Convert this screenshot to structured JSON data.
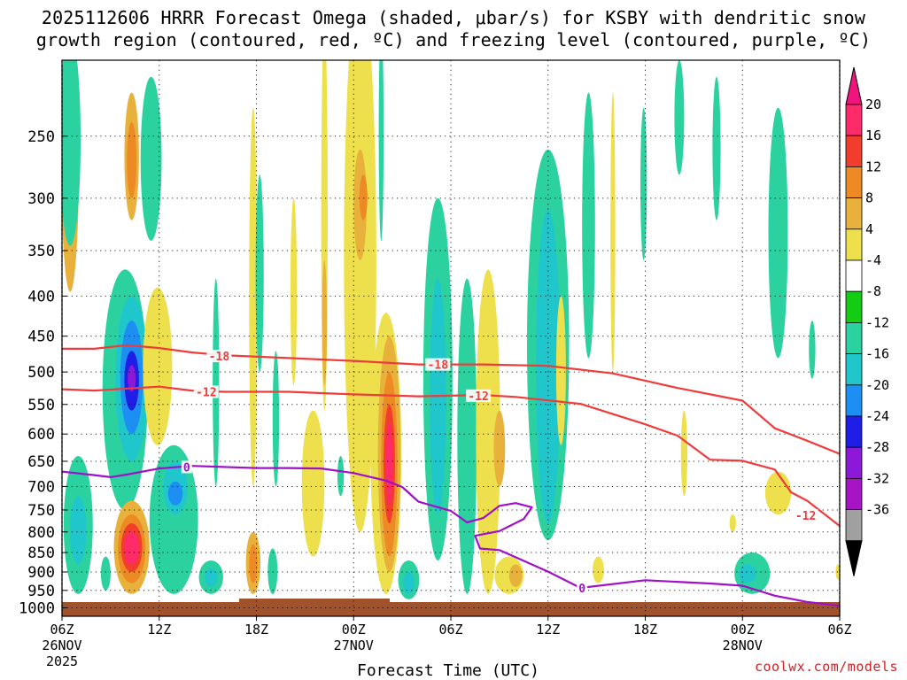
{
  "header": {
    "title_line1": "2025112606 HRRR Forecast Omega (shaded, μbar/s) for KSBY with dendritic snow",
    "title_line2": "growth region (contoured, red, ºC) and freezing level (contoured, purple, ºC)"
  },
  "footer": {
    "credit": "coolwx.com/models"
  },
  "chart_data": {
    "type": "heatmap",
    "title": "2025112606 HRRR Forecast Omega (shaded, μbar/s) for KSBY",
    "xlabel": "Forecast Time (UTC)",
    "ylabel": "",
    "x_unit": "forecast hour",
    "x_range": [
      0,
      48
    ],
    "y_range_hPa": [
      1025,
      200
    ],
    "y_scale": "log-pressure (inverted)",
    "x_ticks": [
      {
        "hour": 0,
        "label": "06Z",
        "sub": [
          "26NOV",
          "2025"
        ]
      },
      {
        "hour": 6,
        "label": "12Z",
        "sub": []
      },
      {
        "hour": 12,
        "label": "18Z",
        "sub": []
      },
      {
        "hour": 18,
        "label": "00Z",
        "sub": [
          "27NOV"
        ]
      },
      {
        "hour": 24,
        "label": "06Z",
        "sub": []
      },
      {
        "hour": 30,
        "label": "12Z",
        "sub": []
      },
      {
        "hour": 36,
        "label": "18Z",
        "sub": []
      },
      {
        "hour": 42,
        "label": "00Z",
        "sub": [
          "28NOV"
        ]
      },
      {
        "hour": 48,
        "label": "06Z",
        "sub": []
      }
    ],
    "y_ticks": [
      250,
      300,
      350,
      400,
      450,
      500,
      550,
      600,
      650,
      700,
      750,
      800,
      850,
      900,
      950,
      1000
    ],
    "colorbar": {
      "labels": [
        20,
        16,
        12,
        8,
        4,
        -4,
        -8,
        -12,
        -16,
        -20,
        -24,
        -28,
        -32,
        -36
      ],
      "colors": [
        "#ff2a6a",
        "#f23c2c",
        "#ee8a24",
        "#e8b13c",
        "#ede04c",
        "#ffffff",
        "#14cc14",
        "#2bd2a0",
        "#1fc6cc",
        "#1d8ef2",
        "#1e1ee6",
        "#8c18d8",
        "#a614c6",
        "#a0a0a0"
      ],
      "top_color": "#f0147e",
      "bottom_color": "#000000"
    },
    "contour_labels": {
      "dgz_upper": "-18",
      "dgz_lower": "-12",
      "freezing": "0"
    },
    "series": [
      {
        "name": "-18C isotherm",
        "color": "#ee3c3c",
        "points": [
          [
            0,
            467
          ],
          [
            2,
            467
          ],
          [
            4,
            462
          ],
          [
            6,
            466
          ],
          [
            8,
            472
          ],
          [
            10,
            476
          ],
          [
            14,
            480
          ],
          [
            18,
            484
          ],
          [
            22,
            489
          ],
          [
            26,
            489
          ],
          [
            30,
            491
          ],
          [
            34,
            502
          ],
          [
            38,
            524
          ],
          [
            42,
            544
          ],
          [
            44,
            590
          ],
          [
            46,
            612
          ],
          [
            48,
            636
          ]
        ]
      },
      {
        "name": "-12C isotherm",
        "color": "#ee3c3c",
        "points": [
          [
            0,
            526
          ],
          [
            2,
            528
          ],
          [
            4,
            525
          ],
          [
            6,
            522
          ],
          [
            8,
            528
          ],
          [
            10,
            530
          ],
          [
            14,
            530
          ],
          [
            18,
            534
          ],
          [
            22,
            537
          ],
          [
            26,
            535
          ],
          [
            28,
            538
          ],
          [
            32,
            549
          ],
          [
            36,
            583
          ],
          [
            38,
            603
          ],
          [
            40,
            647
          ],
          [
            42,
            649
          ],
          [
            44,
            666
          ],
          [
            45,
            712
          ],
          [
            46,
            730
          ],
          [
            48,
            786
          ]
        ]
      },
      {
        "name": "0C isotherm (freezing level)",
        "color": "#a010c8",
        "points": [
          [
            0,
            670
          ],
          [
            2,
            677
          ],
          [
            3,
            681
          ],
          [
            4,
            676
          ],
          [
            6,
            664
          ],
          [
            8,
            659
          ],
          [
            10,
            661
          ],
          [
            12,
            663
          ],
          [
            14,
            663
          ],
          [
            16,
            664
          ],
          [
            18,
            673
          ],
          [
            20,
            688
          ],
          [
            21,
            701
          ],
          [
            22,
            732
          ],
          [
            23,
            742
          ],
          [
            24,
            752
          ],
          [
            25,
            778
          ],
          [
            26,
            768
          ],
          [
            27,
            741
          ],
          [
            28,
            735
          ],
          [
            29,
            744
          ],
          [
            28.5,
            770
          ],
          [
            27,
            798
          ],
          [
            25.5,
            809
          ],
          [
            25.8,
            840
          ],
          [
            27,
            844
          ],
          [
            30,
            899
          ],
          [
            32,
            943
          ],
          [
            36,
            922
          ],
          [
            40,
            931
          ],
          [
            42,
            937
          ],
          [
            44,
            965
          ],
          [
            46,
            983
          ],
          [
            48,
            994
          ]
        ]
      }
    ],
    "features": [
      {
        "val": 8,
        "hour": 0.5,
        "p0": 180,
        "p1": 395,
        "w": 1.1
      },
      {
        "val": -8,
        "hour": 0.5,
        "p0": 185,
        "p1": 345,
        "w": 1.3
      },
      {
        "val": -8,
        "hour": 1.0,
        "p0": 640,
        "p1": 960,
        "w": 1.8
      },
      {
        "val": -12,
        "hour": 1.0,
        "p0": 720,
        "p1": 880,
        "w": 1.0
      },
      {
        "val": -8,
        "hour": 2.7,
        "p0": 860,
        "p1": 950,
        "w": 0.6
      },
      {
        "val": -8,
        "hour": 3.9,
        "p0": 370,
        "p1": 750,
        "w": 2.8
      },
      {
        "val": -12,
        "hour": 4.3,
        "p0": 400,
        "p1": 650,
        "w": 2.0
      },
      {
        "val": -16,
        "hour": 4.3,
        "p0": 430,
        "p1": 600,
        "w": 1.4
      },
      {
        "val": -20,
        "hour": 4.3,
        "p0": 470,
        "p1": 560,
        "w": 0.9
      },
      {
        "val": -24,
        "hour": 4.3,
        "p0": 490,
        "p1": 530,
        "w": 0.5
      },
      {
        "val": 8,
        "hour": 4.3,
        "p0": 730,
        "p1": 960,
        "w": 2.2
      },
      {
        "val": 12,
        "hour": 4.3,
        "p0": 760,
        "p1": 930,
        "w": 1.7
      },
      {
        "val": 16,
        "hour": 4.3,
        "p0": 780,
        "p1": 900,
        "w": 1.3
      },
      {
        "val": 20,
        "hour": 4.3,
        "p0": 800,
        "p1": 880,
        "w": 0.9
      },
      {
        "val": 8,
        "hour": 4.3,
        "p0": 220,
        "p1": 320,
        "w": 0.9
      },
      {
        "val": 12,
        "hour": 4.3,
        "p0": 240,
        "p1": 300,
        "w": 0.6
      },
      {
        "val": -8,
        "hour": 5.5,
        "p0": 210,
        "p1": 340,
        "w": 1.3
      },
      {
        "val": 4,
        "hour": 5.9,
        "p0": 390,
        "p1": 620,
        "w": 1.8
      },
      {
        "val": -8,
        "hour": 6.9,
        "p0": 620,
        "p1": 960,
        "w": 3.0
      },
      {
        "val": -12,
        "hour": 7.0,
        "p0": 650,
        "p1": 760,
        "w": 1.5
      },
      {
        "val": -16,
        "hour": 7.0,
        "p0": 690,
        "p1": 740,
        "w": 0.9
      },
      {
        "val": -8,
        "hour": 9.2,
        "p0": 870,
        "p1": 960,
        "w": 1.5
      },
      {
        "val": -12,
        "hour": 9.2,
        "p0": 890,
        "p1": 940,
        "w": 0.8
      },
      {
        "val": -8,
        "hour": 9.5,
        "p0": 380,
        "p1": 700,
        "w": 0.4
      },
      {
        "val": 4,
        "hour": 11.8,
        "p0": 230,
        "p1": 700,
        "w": 0.5
      },
      {
        "val": 8,
        "hour": 11.8,
        "p0": 800,
        "p1": 960,
        "w": 0.9
      },
      {
        "val": 12,
        "hour": 11.8,
        "p0": 830,
        "p1": 930,
        "w": 0.5
      },
      {
        "val": -8,
        "hour": 12.2,
        "p0": 280,
        "p1": 500,
        "w": 0.5
      },
      {
        "val": -8,
        "hour": 13.0,
        "p0": 840,
        "p1": 960,
        "w": 0.6
      },
      {
        "val": 4,
        "hour": 15.5,
        "p0": 560,
        "p1": 860,
        "w": 1.4
      },
      {
        "val": 4,
        "hour": 14.3,
        "p0": 300,
        "p1": 520,
        "w": 0.4
      },
      {
        "val": -8,
        "hour": 13.2,
        "p0": 470,
        "p1": 700,
        "w": 0.4
      },
      {
        "val": 4,
        "hour": 16.2,
        "p0": 180,
        "p1": 560,
        "w": 0.4
      },
      {
        "val": 8,
        "hour": 16.2,
        "p0": 360,
        "p1": 520,
        "w": 0.3
      },
      {
        "val": -8,
        "hour": 17.2,
        "p0": 640,
        "p1": 720,
        "w": 0.4
      },
      {
        "val": 4,
        "hour": 18.4,
        "p0": 160,
        "p1": 800,
        "w": 2.0
      },
      {
        "val": 8,
        "hour": 18.4,
        "p0": 260,
        "p1": 360,
        "w": 0.8
      },
      {
        "val": 12,
        "hour": 18.6,
        "p0": 280,
        "p1": 320,
        "w": 0.5
      },
      {
        "val": 4,
        "hour": 20.0,
        "p0": 420,
        "p1": 960,
        "w": 1.9
      },
      {
        "val": 8,
        "hour": 20.2,
        "p0": 450,
        "p1": 900,
        "w": 1.4
      },
      {
        "val": 12,
        "hour": 20.2,
        "p0": 500,
        "p1": 860,
        "w": 1.0
      },
      {
        "val": 16,
        "hour": 20.2,
        "p0": 550,
        "p1": 780,
        "w": 0.7
      },
      {
        "val": 20,
        "hour": 20.2,
        "p0": 580,
        "p1": 740,
        "w": 0.4
      },
      {
        "val": -8,
        "hour": 21.4,
        "p0": 870,
        "p1": 975,
        "w": 1.3
      },
      {
        "val": -12,
        "hour": 21.4,
        "p0": 900,
        "p1": 960,
        "w": 0.7
      },
      {
        "val": -8,
        "hour": 19.7,
        "p0": 180,
        "p1": 340,
        "w": 0.3
      },
      {
        "val": -8,
        "hour": 23.2,
        "p0": 300,
        "p1": 870,
        "w": 1.8
      },
      {
        "val": -12,
        "hour": 23.2,
        "p0": 380,
        "p1": 760,
        "w": 1.0
      },
      {
        "val": -8,
        "hour": 25.0,
        "p0": 380,
        "p1": 960,
        "w": 1.2
      },
      {
        "val": 4,
        "hour": 26.3,
        "p0": 370,
        "p1": 960,
        "w": 1.5
      },
      {
        "val": 8,
        "hour": 27.0,
        "p0": 560,
        "p1": 700,
        "w": 0.7
      },
      {
        "val": 4,
        "hour": 27.6,
        "p0": 860,
        "p1": 960,
        "w": 1.8
      },
      {
        "val": 8,
        "hour": 28.0,
        "p0": 880,
        "p1": 940,
        "w": 0.8
      },
      {
        "val": -8,
        "hour": 30.0,
        "p0": 260,
        "p1": 820,
        "w": 2.6
      },
      {
        "val": -12,
        "hour": 30.0,
        "p0": 310,
        "p1": 780,
        "w": 1.5
      },
      {
        "val": -8,
        "hour": 32.5,
        "p0": 220,
        "p1": 480,
        "w": 0.8
      },
      {
        "val": 4,
        "hour": 30.8,
        "p0": 400,
        "p1": 620,
        "w": 0.6
      },
      {
        "val": 4,
        "hour": 33.1,
        "p0": 860,
        "p1": 930,
        "w": 0.7
      },
      {
        "val": 4,
        "hour": 34.0,
        "p0": 220,
        "p1": 500,
        "w": 0.3
      },
      {
        "val": -8,
        "hour": 35.9,
        "p0": 230,
        "p1": 360,
        "w": 0.4
      },
      {
        "val": 4,
        "hour": 38.4,
        "p0": 560,
        "p1": 720,
        "w": 0.4
      },
      {
        "val": -8,
        "hour": 38.1,
        "p0": 200,
        "p1": 280,
        "w": 0.6
      },
      {
        "val": -8,
        "hour": 40.4,
        "p0": 210,
        "p1": 320,
        "w": 0.5
      },
      {
        "val": -8,
        "hour": 42.6,
        "p0": 850,
        "p1": 960,
        "w": 2.2
      },
      {
        "val": -12,
        "hour": 42.3,
        "p0": 880,
        "p1": 930,
        "w": 1.1
      },
      {
        "val": -8,
        "hour": 44.2,
        "p0": 230,
        "p1": 480,
        "w": 1.2
      },
      {
        "val": -8,
        "hour": 46.3,
        "p0": 430,
        "p1": 510,
        "w": 0.4
      },
      {
        "val": 4,
        "hour": 44.2,
        "p0": 670,
        "p1": 760,
        "w": 1.6
      },
      {
        "val": 4,
        "hour": 41.4,
        "p0": 760,
        "p1": 800,
        "w": 0.4
      },
      {
        "val": 4,
        "hour": 47.9,
        "p0": 880,
        "p1": 920,
        "w": 0.3
      }
    ]
  }
}
